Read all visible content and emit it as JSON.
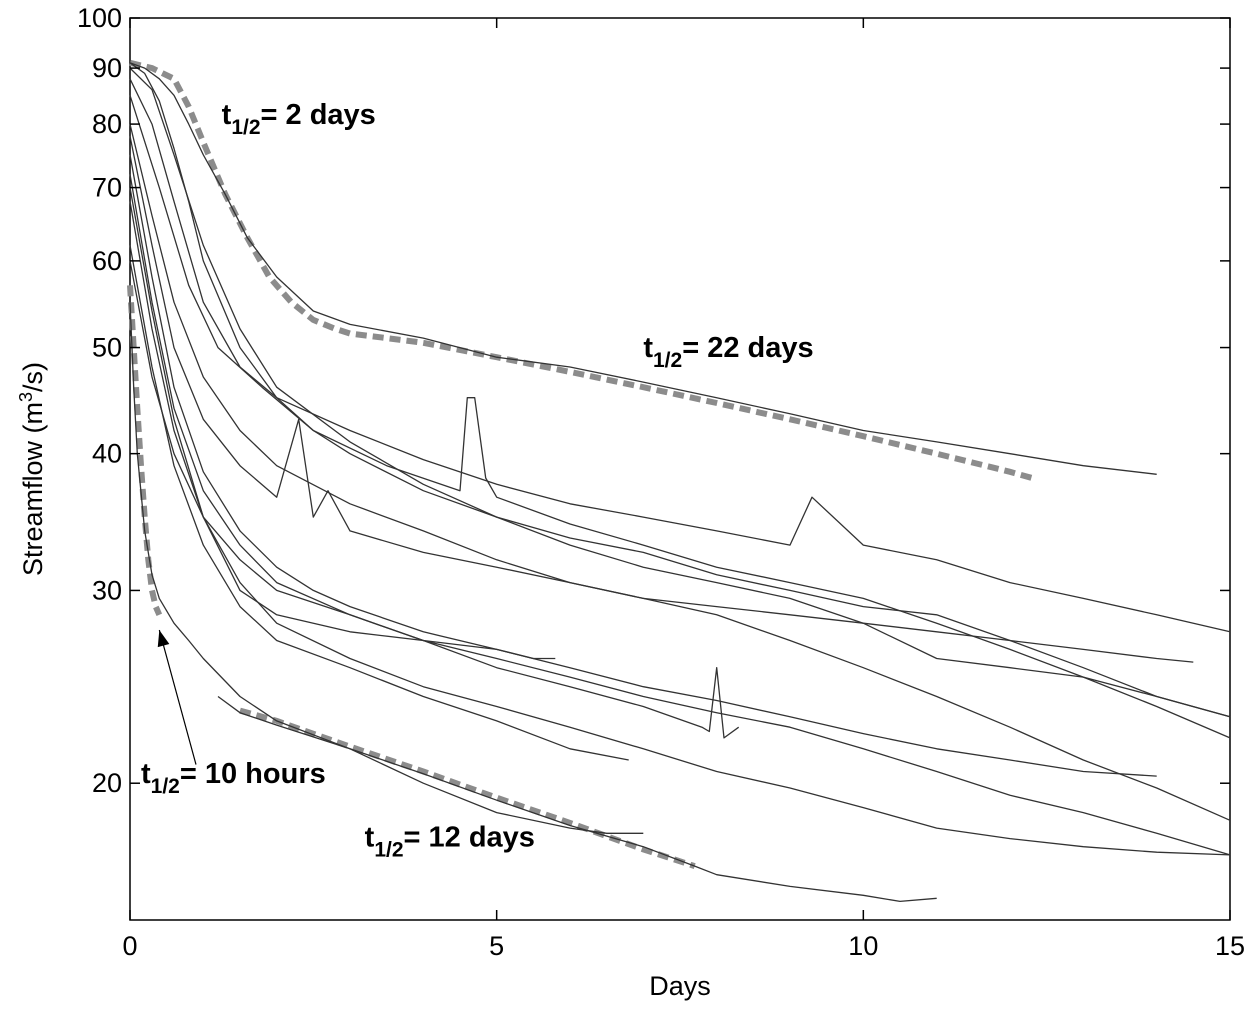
{
  "chart_data": {
    "type": "line",
    "xlabel": "Days",
    "ylabel_main": "Streamflow (m",
    "ylabel_sup": "3",
    "ylabel_tail": "/s)",
    "xlim": [
      0,
      15
    ],
    "ylim": [
      15,
      100
    ],
    "y_scale": "log",
    "grid": false,
    "x_ticks": [
      0,
      5,
      10,
      15
    ],
    "y_ticks": [
      20,
      30,
      40,
      50,
      60,
      70,
      80,
      90,
      100
    ],
    "colors": {
      "observed": "#333333",
      "fit": "#8c8c8c"
    },
    "annotations": [
      {
        "id": "a2",
        "prefix": "t",
        "sub": "1/2",
        "suffix": "= 2 days",
        "x": 1.25,
        "y": 80
      },
      {
        "id": "a22",
        "prefix": "t",
        "sub": "1/2",
        "suffix": "= 22 days",
        "x": 7.0,
        "y": 49
      },
      {
        "id": "a10h",
        "prefix": "t",
        "sub": "1/2",
        "suffix": "= 10 hours",
        "x": 0.15,
        "y": 20
      },
      {
        "id": "a12",
        "prefix": "t",
        "sub": "1/2",
        "suffix": "= 12 days",
        "x": 3.2,
        "y": 17.5
      }
    ],
    "arrow": {
      "from": [
        0.9,
        20.8
      ],
      "to": [
        0.4,
        27.6
      ]
    },
    "fit_series": [
      {
        "x": [
          0,
          0.3,
          0.6,
          0.8,
          1.0,
          1.3,
          1.6,
          1.9,
          2.2,
          2.5,
          2.8,
          3.0,
          3.5,
          4,
          5,
          6,
          7,
          8,
          9,
          10,
          11,
          12,
          12.3
        ],
        "y": [
          91,
          90,
          88,
          83,
          77,
          69,
          63,
          58,
          55,
          53,
          52,
          51.5,
          51,
          50.5,
          49,
          47.5,
          46,
          44.5,
          43,
          41.5,
          40,
          38.5,
          38
        ]
      },
      {
        "x": [
          1.5,
          2,
          3,
          4,
          5,
          6,
          7,
          7.7
        ],
        "y": [
          23.3,
          22.8,
          21.6,
          20.5,
          19.4,
          18.4,
          17.4,
          16.8
        ]
      },
      {
        "x": [
          0,
          0.05,
          0.1,
          0.15,
          0.2,
          0.25,
          0.3,
          0.35,
          0.4
        ],
        "y": [
          57,
          50,
          44,
          39,
          35,
          32,
          30,
          29,
          28.5
        ]
      }
    ],
    "series": [
      {
        "x": [
          0,
          0.2,
          0.4,
          0.6,
          0.8,
          1.0,
          1.3,
          1.6,
          2.0,
          2.5,
          3,
          4,
          5,
          6,
          7,
          8,
          9,
          10,
          11,
          12,
          13,
          14
        ],
        "y": [
          91,
          90,
          88,
          85,
          80,
          75,
          69,
          63,
          58,
          54,
          52.5,
          51,
          49,
          48,
          46.5,
          45,
          43.5,
          42,
          41,
          40,
          39,
          38.3
        ]
      },
      {
        "x": [
          0,
          0.2,
          0.4,
          0.6,
          0.8,
          1.0,
          1.5,
          2,
          2.5,
          3,
          4,
          5,
          6,
          7,
          8,
          9,
          10,
          11,
          12,
          13,
          14,
          15
        ],
        "y": [
          91,
          89,
          84,
          76,
          68,
          60,
          50,
          45,
          42,
          40,
          37,
          35,
          33.5,
          32.5,
          31,
          30,
          29,
          28.5,
          27,
          25.5,
          24,
          23
        ]
      },
      {
        "x": [
          0,
          0.3,
          0.6,
          1.0,
          1.5,
          2,
          3,
          4,
          5,
          6,
          7,
          8,
          9,
          10,
          11,
          12,
          13,
          14,
          15
        ],
        "y": [
          90,
          86,
          75,
          62,
          52,
          46,
          41,
          37.5,
          35,
          33,
          31.5,
          30.5,
          29.5,
          28,
          26,
          25.5,
          25,
          24,
          23
        ]
      },
      {
        "x": [
          0,
          0.3,
          0.6,
          1.0,
          1.5,
          2,
          3,
          4,
          5,
          6,
          7,
          8,
          9,
          9.3,
          10,
          11,
          12,
          13,
          14,
          15
        ],
        "y": [
          88,
          80,
          68,
          55,
          48,
          45,
          42,
          39.5,
          37.5,
          36,
          35,
          34,
          33,
          36.5,
          33,
          32,
          30.5,
          29.5,
          28.5,
          27.5
        ]
      },
      {
        "x": [
          0,
          0.4,
          0.8,
          1.2,
          1.8,
          2.5,
          3.5,
          4.5,
          4.6,
          4.7,
          4.85,
          5,
          6,
          7,
          8,
          9,
          10,
          11,
          12,
          13,
          14,
          15
        ],
        "y": [
          85,
          70,
          57,
          50,
          46,
          42,
          39,
          37,
          45,
          45,
          38,
          36.5,
          34.5,
          33,
          31.5,
          30.5,
          29.5,
          28,
          26.5,
          25,
          23.5,
          22
        ]
      },
      {
        "x": [
          0,
          0.3,
          0.6,
          1.0,
          1.5,
          2,
          3,
          4,
          5,
          6,
          7,
          8,
          9,
          10,
          11,
          12,
          13,
          14,
          15
        ],
        "y": [
          80,
          66,
          55,
          47,
          42,
          39,
          36,
          34,
          32,
          30.5,
          29.5,
          28.5,
          27,
          25.5,
          24,
          22.5,
          21,
          19.8,
          18.5
        ]
      },
      {
        "x": [
          0,
          0.3,
          0.6,
          1.0,
          1.5,
          2,
          2.3,
          2.5,
          2.7,
          3,
          4,
          5,
          6,
          7,
          8,
          9,
          10,
          11,
          12,
          13,
          14,
          14.5
        ],
        "y": [
          78,
          62,
          50,
          43,
          39,
          36.5,
          43,
          35,
          37,
          34,
          32.5,
          31.5,
          30.5,
          29.5,
          29,
          28.5,
          28,
          27.5,
          27,
          26.5,
          26,
          25.8
        ]
      },
      {
        "x": [
          0,
          0.3,
          0.6,
          1.0,
          1.5,
          2,
          2.5,
          3,
          4,
          5,
          6,
          7,
          8,
          9,
          10,
          11,
          12,
          13,
          14
        ],
        "y": [
          75,
          58,
          46,
          38.5,
          34,
          31.5,
          30,
          29,
          27.5,
          26.5,
          25.5,
          24.5,
          23.8,
          23,
          22.2,
          21.5,
          21,
          20.5,
          20.3
        ]
      },
      {
        "x": [
          0,
          0.3,
          0.6,
          1.0,
          1.5,
          2,
          3,
          4,
          5,
          6,
          7,
          8,
          9,
          10,
          11,
          12,
          13,
          14,
          15
        ],
        "y": [
          72,
          55,
          44,
          37,
          33,
          30.5,
          28.5,
          27,
          26,
          25,
          24,
          23.2,
          22.5,
          21.5,
          20.5,
          19.5,
          18.8,
          18,
          17.2
        ]
      },
      {
        "x": [
          0,
          0.3,
          0.6,
          1.0,
          1.5,
          2,
          3,
          4,
          5,
          6,
          7,
          8,
          9,
          10,
          11,
          12,
          13,
          14,
          15
        ],
        "y": [
          70,
          54,
          43,
          35,
          30.5,
          28,
          26,
          24.5,
          23.5,
          22.5,
          21.5,
          20.5,
          19.8,
          19,
          18.2,
          17.8,
          17.5,
          17.3,
          17.2
        ]
      },
      {
        "x": [
          0,
          0.3,
          0.6,
          1.0,
          1.5,
          2,
          3,
          4,
          5,
          5.5,
          5.8
        ],
        "y": [
          68,
          52,
          42,
          35,
          30,
          28.5,
          27.5,
          27,
          26.5,
          26,
          26
        ]
      },
      {
        "x": [
          0,
          0.3,
          0.6,
          1.0,
          1.5,
          2,
          3,
          4,
          5,
          6,
          6.8
        ],
        "y": [
          62,
          48,
          39,
          33,
          29,
          27,
          25.5,
          24,
          22.8,
          21.5,
          21
        ]
      },
      {
        "x": [
          0,
          0.3,
          0.6,
          1.0,
          1.5,
          2,
          3,
          4,
          5,
          6,
          7,
          7.8,
          7.9,
          8.0,
          8.1,
          8.3
        ],
        "y": [
          60,
          47,
          40,
          35,
          32,
          30,
          28.5,
          27,
          25.5,
          24.5,
          23.5,
          22.5,
          22.3,
          25.5,
          22,
          22.5
        ]
      },
      {
        "x": [
          0,
          0.05,
          0.1,
          0.2,
          0.3,
          0.4,
          0.6,
          0.8,
          1.0,
          1.5,
          2,
          3,
          4,
          5,
          6,
          6.5,
          7
        ],
        "y": [
          55,
          46,
          40,
          34,
          31,
          29.5,
          28,
          27,
          26,
          24,
          22.8,
          21.5,
          20,
          18.8,
          18.2,
          18,
          18
        ]
      },
      {
        "x": [
          1.2,
          1.5,
          2,
          3,
          4,
          5,
          6,
          7,
          7.7,
          8,
          9,
          10,
          10.5,
          11
        ],
        "y": [
          24,
          23.2,
          22.6,
          21.5,
          20.4,
          19.3,
          18.3,
          17.5,
          16.8,
          16.5,
          16.1,
          15.8,
          15.6,
          15.7
        ]
      }
    ]
  }
}
